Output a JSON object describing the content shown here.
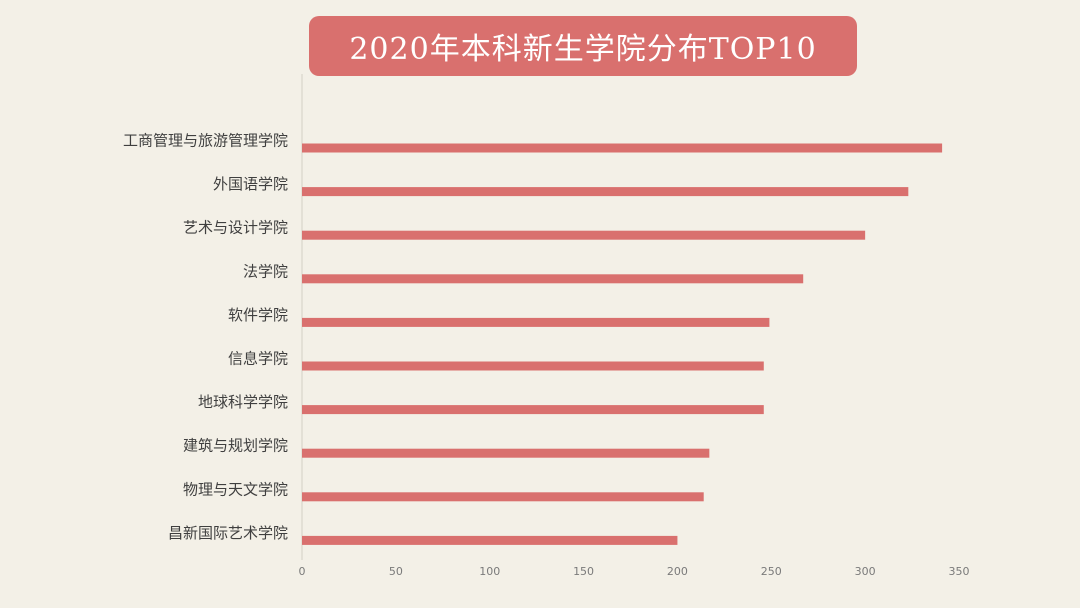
{
  "title": "2020年本科新生学院分布TOP10",
  "colors": {
    "background": "#f3f0e7",
    "bar": "#d9706e",
    "axis": "#d3cfc5"
  },
  "chart_data": {
    "type": "bar",
    "orientation": "horizontal",
    "title": "2020年本科新生学院分布TOP10",
    "xlabel": "",
    "ylabel": "",
    "categories": [
      "工商管理与旅游管理学院",
      "外国语学院",
      "艺术与设计学院",
      "法学院",
      "软件学院",
      "信息学院",
      "地球科学学院",
      "建筑与规划学院",
      "物理与天文学院",
      "昌新国际艺术学院"
    ],
    "values": [
      341,
      323,
      300,
      267,
      249,
      246,
      246,
      217,
      214,
      200
    ],
    "xlim": [
      0,
      350
    ],
    "xticks": [
      0,
      50,
      100,
      150,
      200,
      250,
      300,
      350
    ],
    "grid": false,
    "legend": "none"
  }
}
